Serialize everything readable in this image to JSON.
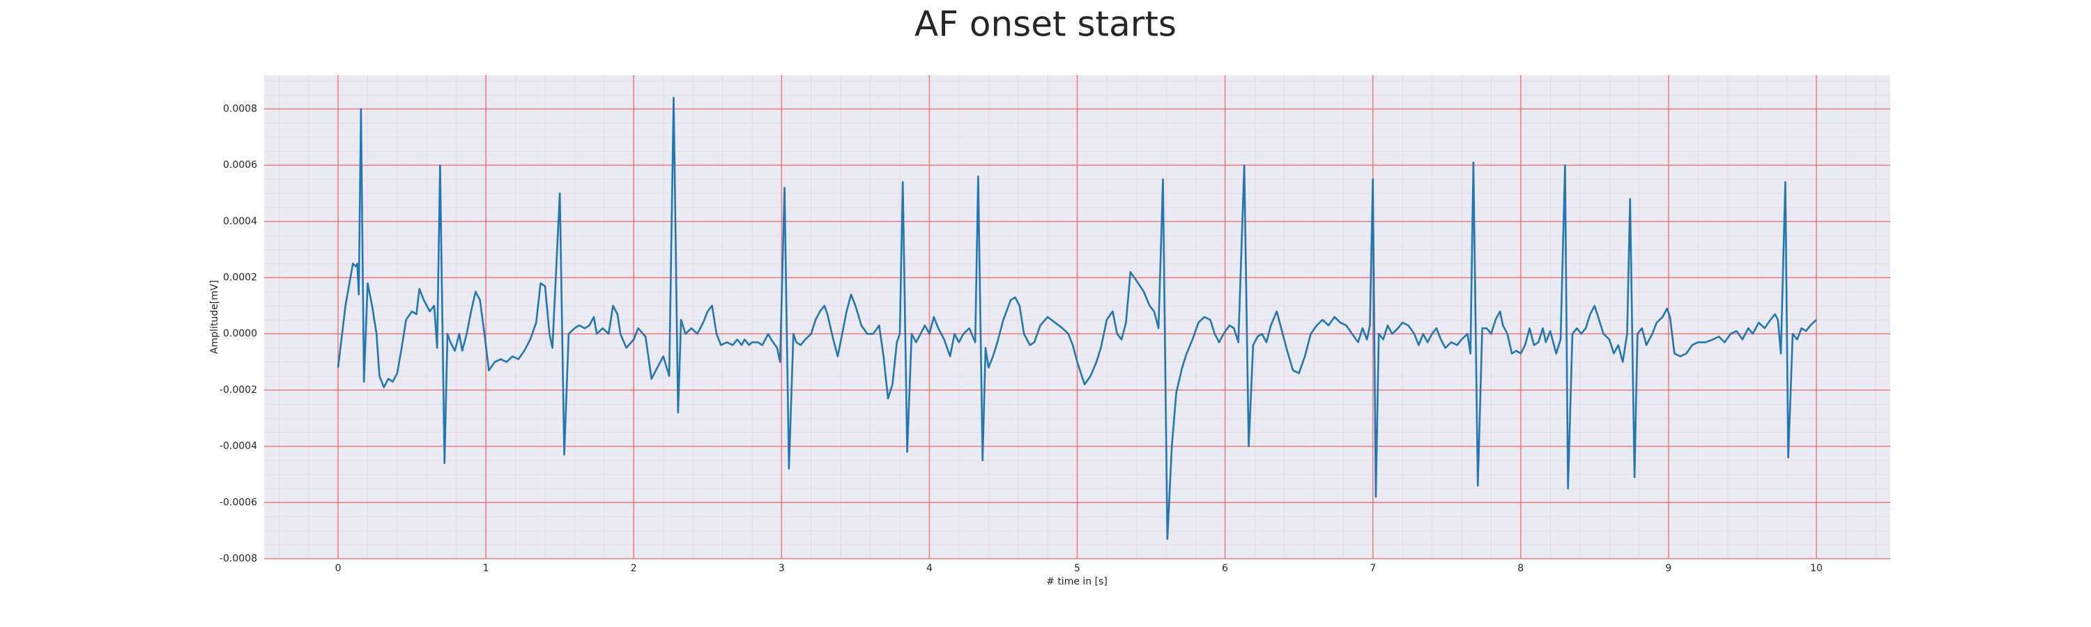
{
  "chart_data": {
    "type": "line",
    "title": "AF onset starts",
    "x_label": "# time in [s]",
    "y_label": "Amplitude[mV]",
    "color": "#1f77b4",
    "grid": true,
    "grid_color": "#f06060",
    "background": "#eaeaf2",
    "xlim": [
      -0.5,
      10.5
    ],
    "ylim": [
      -0.0008,
      0.00092
    ],
    "xticks": [
      0,
      1,
      2,
      3,
      4,
      5,
      6,
      7,
      8,
      9,
      10
    ],
    "yticks": [
      -0.0008,
      -0.0006,
      -0.0004,
      -0.0002,
      {
        "value": 0,
        "label": "0.0000"
      },
      0.0002,
      0.0004,
      0.0006,
      0.0008
    ],
    "x": [
      0.0,
      0.05,
      0.1,
      0.12,
      0.13,
      0.14,
      0.155,
      0.175,
      0.2,
      0.23,
      0.26,
      0.28,
      0.31,
      0.34,
      0.37,
      0.4,
      0.43,
      0.46,
      0.5,
      0.53,
      0.55,
      0.58,
      0.62,
      0.65,
      0.67,
      0.69,
      0.72,
      0.74,
      0.76,
      0.79,
      0.82,
      0.84,
      0.87,
      0.9,
      0.93,
      0.96,
      0.99,
      1.02,
      1.06,
      1.1,
      1.14,
      1.18,
      1.22,
      1.26,
      1.3,
      1.34,
      1.37,
      1.4,
      1.43,
      1.45,
      1.5,
      1.53,
      1.56,
      1.6,
      1.63,
      1.67,
      1.7,
      1.73,
      1.75,
      1.79,
      1.83,
      1.86,
      1.89,
      1.91,
      1.95,
      2.0,
      2.03,
      2.08,
      2.12,
      2.16,
      2.2,
      2.24,
      2.27,
      2.3,
      2.32,
      2.35,
      2.39,
      2.43,
      2.47,
      2.5,
      2.53,
      2.56,
      2.59,
      2.63,
      2.67,
      2.7,
      2.73,
      2.75,
      2.78,
      2.8,
      2.84,
      2.87,
      2.91,
      2.93,
      2.97,
      2.99,
      3.02,
      3.05,
      3.08,
      3.1,
      3.13,
      3.16,
      3.2,
      3.23,
      3.26,
      3.29,
      3.31,
      3.35,
      3.38,
      3.41,
      3.44,
      3.47,
      3.5,
      3.54,
      3.58,
      3.62,
      3.66,
      3.69,
      3.72,
      3.75,
      3.78,
      3.8,
      3.82,
      3.85,
      3.88,
      3.91,
      3.94,
      3.97,
      4.0,
      4.03,
      4.06,
      4.1,
      4.14,
      4.17,
      4.2,
      4.23,
      4.27,
      4.31,
      4.33,
      4.36,
      4.38,
      4.4,
      4.43,
      4.46,
      4.5,
      4.55,
      4.58,
      4.61,
      4.64,
      4.68,
      4.71,
      4.75,
      4.8,
      4.85,
      4.9,
      4.94,
      4.97,
      5.0,
      5.05,
      5.09,
      5.13,
      5.16,
      5.2,
      5.24,
      5.27,
      5.3,
      5.33,
      5.36,
      5.4,
      5.45,
      5.49,
      5.52,
      5.55,
      5.58,
      5.61,
      5.64,
      5.67,
      5.71,
      5.74,
      5.78,
      5.82,
      5.86,
      5.9,
      5.93,
      5.96,
      5.99,
      6.03,
      6.06,
      6.09,
      6.13,
      6.16,
      6.19,
      6.22,
      6.25,
      6.28,
      6.31,
      6.35,
      6.38,
      6.42,
      6.46,
      6.5,
      6.54,
      6.58,
      6.62,
      6.66,
      6.7,
      6.74,
      6.78,
      6.82,
      6.86,
      6.9,
      6.93,
      6.96,
      6.98,
      7.0,
      7.02,
      7.04,
      7.07,
      7.1,
      7.13,
      7.17,
      7.2,
      7.24,
      7.28,
      7.31,
      7.34,
      7.37,
      7.4,
      7.43,
      7.46,
      7.49,
      7.53,
      7.57,
      7.6,
      7.64,
      7.66,
      7.68,
      7.71,
      7.74,
      7.77,
      7.8,
      7.83,
      7.86,
      7.88,
      7.91,
      7.94,
      7.97,
      8.0,
      8.03,
      8.06,
      8.09,
      8.12,
      8.15,
      8.17,
      8.2,
      8.24,
      8.27,
      8.3,
      8.32,
      8.35,
      8.38,
      8.41,
      8.44,
      8.47,
      8.5,
      8.53,
      8.56,
      8.6,
      8.63,
      8.66,
      8.69,
      8.72,
      8.74,
      8.77,
      8.79,
      8.82,
      8.85,
      8.89,
      8.92,
      8.96,
      8.99,
      9.01,
      9.04,
      9.08,
      9.12,
      9.16,
      9.2,
      9.25,
      9.3,
      9.34,
      9.38,
      9.42,
      9.46,
      9.5,
      9.54,
      9.57,
      9.61,
      9.65,
      9.69,
      9.72,
      9.74,
      9.76,
      9.79,
      9.81,
      9.84,
      9.87,
      9.9,
      9.93,
      9.96,
      10.0
    ],
    "values": [
      -0.00012,
      0.0001,
      0.00025,
      0.00024,
      0.00025,
      0.00014,
      0.0008,
      -0.00017,
      0.00018,
      0.0001,
      0.0,
      -0.00015,
      -0.00019,
      -0.00016,
      -0.00017,
      -0.00014,
      -5e-05,
      5e-05,
      8e-05,
      7e-05,
      0.00016,
      0.00012,
      8e-05,
      0.0001,
      -5e-05,
      0.0006,
      -0.00046,
      0.0,
      -3e-05,
      -6e-05,
      0.0,
      -6e-05,
      0.0,
      8e-05,
      0.00015,
      0.00012,
      0.0,
      -0.00013,
      -0.0001,
      -9e-05,
      -0.0001,
      -8e-05,
      -9e-05,
      -6e-05,
      -2e-05,
      4e-05,
      0.00018,
      0.00017,
      0.0,
      -5e-05,
      0.0005,
      -0.00043,
      0.0,
      2e-05,
      3e-05,
      2e-05,
      3e-05,
      6e-05,
      0.0,
      2e-05,
      0.0,
      0.0001,
      7e-05,
      0.0,
      -5e-05,
      -2e-05,
      2e-05,
      -1e-05,
      -0.00016,
      -0.00012,
      -8e-05,
      -0.00015,
      0.00084,
      -0.00028,
      5e-05,
      0.0,
      2e-05,
      0.0,
      4e-05,
      8e-05,
      0.0001,
      0.0,
      -4e-05,
      -3e-05,
      -4e-05,
      -2e-05,
      -4e-05,
      -2e-05,
      -4e-05,
      -3e-05,
      -3e-05,
      -4e-05,
      0.0,
      -2e-05,
      -5e-05,
      -0.0001,
      0.00052,
      -0.00048,
      0.0,
      -3e-05,
      -4e-05,
      -2e-05,
      0.0,
      5e-05,
      8e-05,
      0.0001,
      7e-05,
      -2e-05,
      -8e-05,
      0.0,
      8e-05,
      0.00014,
      0.0001,
      3e-05,
      0.0,
      0.0,
      3e-05,
      -8e-05,
      -0.00023,
      -0.00018,
      -3e-05,
      0.0,
      0.00054,
      -0.00042,
      0.0,
      -3e-05,
      0.0,
      3e-05,
      0.0,
      6e-05,
      2e-05,
      -2e-05,
      -8e-05,
      0.0,
      -3e-05,
      0.0,
      2e-05,
      -3e-05,
      0.00056,
      -0.00045,
      -5e-05,
      -0.00012,
      -8e-05,
      -3e-05,
      5e-05,
      0.00012,
      0.00013,
      0.0001,
      0.0,
      -4e-05,
      -3e-05,
      3e-05,
      6e-05,
      4e-05,
      2e-05,
      0.0,
      -4e-05,
      -0.0001,
      -0.00018,
      -0.00015,
      -0.0001,
      -5e-05,
      5e-05,
      8e-05,
      0.0,
      -2e-05,
      4e-05,
      0.00022,
      0.00019,
      0.00015,
      0.0001,
      8e-05,
      2e-05,
      0.00055,
      -0.00073,
      -0.0004,
      -0.00021,
      -0.00012,
      -7e-05,
      -2e-05,
      4e-05,
      6e-05,
      5e-05,
      0.0,
      -3e-05,
      0.0,
      3e-05,
      2e-05,
      -3e-05,
      0.0006,
      -0.0004,
      -4e-05,
      -1e-05,
      0.0,
      -3e-05,
      3e-05,
      8e-05,
      2e-05,
      -6e-05,
      -0.00013,
      -0.00014,
      -8e-05,
      0.0,
      3e-05,
      5e-05,
      3e-05,
      6e-05,
      4e-05,
      3e-05,
      0.0,
      -3e-05,
      2e-05,
      -2e-05,
      3e-05,
      0.00055,
      -0.00058,
      0.0,
      -2e-05,
      3e-05,
      0.0,
      2e-05,
      4e-05,
      3e-05,
      0.0,
      -4e-05,
      0.0,
      -3e-05,
      0.0,
      2e-05,
      -2e-05,
      -5e-05,
      -3e-05,
      -4e-05,
      -2e-05,
      0.0,
      -7e-05,
      0.00061,
      -0.00054,
      2e-05,
      2e-05,
      0.0,
      5e-05,
      8e-05,
      3e-05,
      0.0,
      -7e-05,
      -6e-05,
      -7e-05,
      -4e-05,
      2e-05,
      -4e-05,
      -3e-05,
      2e-05,
      -3e-05,
      1e-05,
      -7e-05,
      -2e-05,
      0.0006,
      -0.00055,
      0.0,
      2e-05,
      0.0,
      2e-05,
      7e-05,
      0.0001,
      5e-05,
      0.0,
      -2e-05,
      -7e-05,
      -4e-05,
      -0.0001,
      0.0,
      0.00048,
      -0.00051,
      0.0,
      2e-05,
      -4e-05,
      0.0,
      4e-05,
      6e-05,
      9e-05,
      6e-05,
      -7e-05,
      -8e-05,
      -7e-05,
      -4e-05,
      -3e-05,
      -3e-05,
      -2e-05,
      -1e-05,
      -3e-05,
      0.0,
      1e-05,
      -2e-05,
      2e-05,
      0.0,
      4e-05,
      2e-05,
      5e-05,
      7e-05,
      5e-05,
      -7e-05,
      0.00054,
      -0.00044,
      0.0,
      -2e-05,
      2e-05,
      1e-05,
      3e-05,
      5e-05
    ]
  }
}
